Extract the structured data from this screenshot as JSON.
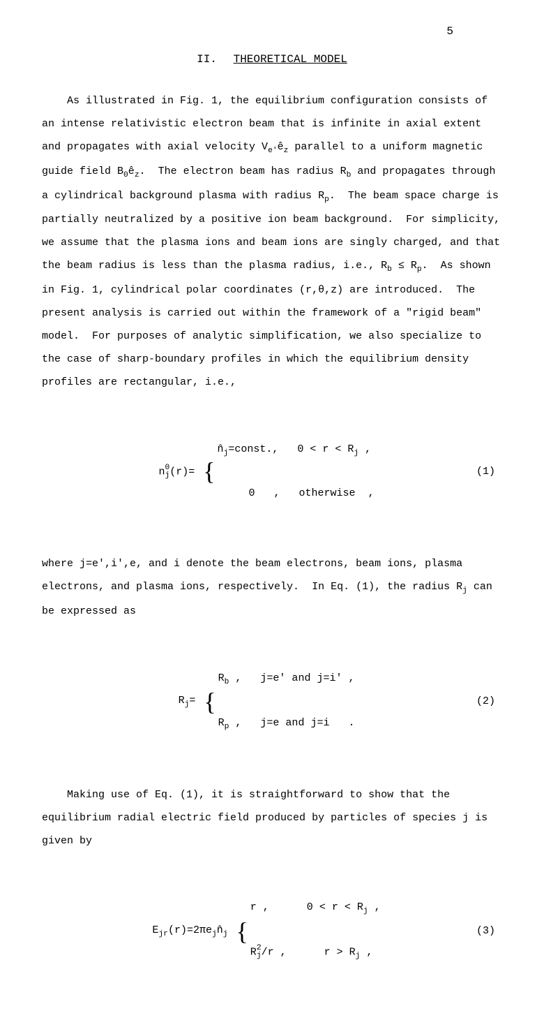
{
  "page": {
    "number": "5",
    "background_color": "#ffffff",
    "text_color": "#000000",
    "font_family": "Courier New",
    "body_fontsize_pt": 11,
    "line_spacing": 2.2
  },
  "heading": {
    "number": "II.",
    "title": "THEORETICAL MODEL"
  },
  "paragraphs": {
    "p1": "As illustrated in Fig. 1, the equilibrium configuration consists of an intense relativistic electron beam that is infinite in axial extent and propagates with axial velocity Ve'êz parallel to a uniform magnetic guide field B0êz.  The electron beam has radius Rb and propagates through a cylindrical background plasma with radius Rp.  The beam space charge is partially neutralized by a positive ion beam background.  For simplicity, we assume that the plasma ions and beam ions are singly charged, and that the beam radius is less than the plasma radius, i.e., Rb ≤ Rp.  As shown in Fig. 1, cylindrical polar coordinates (r,θ,z) are introduced.  The present analysis is carried out within the framework of a \"rigid beam\" model.  For purposes of analytic simplification, we also specialize to the case of sharp-boundary profiles in which the equilibrium density profiles are rectangular, i.e.,",
    "p2": "where j=e',i',e, and i denote the beam electrons, beam ions, plasma electrons, and plasma ions, respectively.  In Eq. (1), the radius Rj can be expressed as",
    "p3": "Making use of Eq. (1), it is straightforward to show that the equilibrium radial electric field produced by particles of species j is given by"
  },
  "equations": {
    "eq1": {
      "label": "(1)",
      "lhs_base": "n",
      "lhs_sup": "0",
      "lhs_sub": "j",
      "lhs_arg": "(r)=",
      "case1": "n̂j=const.,   0 < r < Rj ,",
      "case2": "     0   ,   otherwise  ,"
    },
    "eq2": {
      "label": "(2)",
      "lhs": "Rj=",
      "case1": "Rb ,   j=e' and j=i' ,",
      "case2": "Rp ,   j=e and j=i   ."
    },
    "eq3": {
      "label": "(3)",
      "lhs": "Ejr(r)=2πejn̂j",
      "case1": "r ,      0 < r < Rj ,",
      "case2": "Rj²/r ,      r > Rj ,"
    }
  }
}
